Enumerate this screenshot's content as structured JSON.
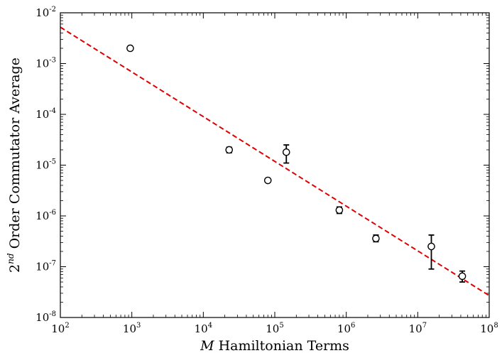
{
  "chart_data": {
    "type": "scatter",
    "x_scale": "log",
    "y_scale": "log",
    "xlim": [
      100,
      100000000
    ],
    "ylim": [
      1e-08,
      0.01
    ],
    "xlabel": {
      "var": "M",
      "text": " Hamiltonian Terms"
    },
    "ylabel": {
      "base": "2",
      "sup": "nd",
      "text": " Order Commutator Average"
    },
    "x_ticks": [
      {
        "value": 100,
        "base": "10",
        "exp": "2"
      },
      {
        "value": 1000,
        "base": "10",
        "exp": "3"
      },
      {
        "value": 10000,
        "base": "10",
        "exp": "4"
      },
      {
        "value": 100000,
        "base": "10",
        "exp": "5"
      },
      {
        "value": 1000000,
        "base": "10",
        "exp": "6"
      },
      {
        "value": 10000000,
        "base": "10",
        "exp": "7"
      },
      {
        "value": 100000000,
        "base": "10",
        "exp": "8"
      }
    ],
    "y_ticks": [
      {
        "value": 1e-08,
        "base": "10",
        "exp": "-8"
      },
      {
        "value": 1e-07,
        "base": "10",
        "exp": "-7"
      },
      {
        "value": 1e-06,
        "base": "10",
        "exp": "-6"
      },
      {
        "value": 1e-05,
        "base": "10",
        "exp": "-5"
      },
      {
        "value": 0.0001,
        "base": "10",
        "exp": "-4"
      },
      {
        "value": 0.001,
        "base": "10",
        "exp": "-3"
      },
      {
        "value": 0.01,
        "base": "10",
        "exp": "-2"
      }
    ],
    "points": [
      {
        "x": 950,
        "y": 0.002,
        "err_low": 0.002,
        "err_high": 0.002
      },
      {
        "x": 23000,
        "y": 2e-05,
        "err_low": 1.75e-05,
        "err_high": 2.25e-05
      },
      {
        "x": 80000,
        "y": 5e-06,
        "err_low": 4.8e-06,
        "err_high": 5.2e-06
      },
      {
        "x": 145000,
        "y": 1.8e-05,
        "err_low": 1.1e-05,
        "err_high": 2.5e-05
      },
      {
        "x": 800000,
        "y": 1.3e-06,
        "err_low": 1.12e-06,
        "err_high": 1.5e-06
      },
      {
        "x": 2600000,
        "y": 3.6e-07,
        "err_low": 3.1e-07,
        "err_high": 4.2e-07
      },
      {
        "x": 15500000,
        "y": 2.5e-07,
        "err_low": 9e-08,
        "err_high": 4.2e-07
      },
      {
        "x": 42000000,
        "y": 6.5e-08,
        "err_low": 5e-08,
        "err_high": 8.2e-08
      }
    ],
    "fit_line": {
      "x": [
        100,
        100000000
      ],
      "y": [
        0.0052,
        2.7e-08
      ],
      "color": "#e00000",
      "style": "dashed"
    },
    "marker_color": "#000000",
    "grid": false,
    "legend": "none"
  }
}
